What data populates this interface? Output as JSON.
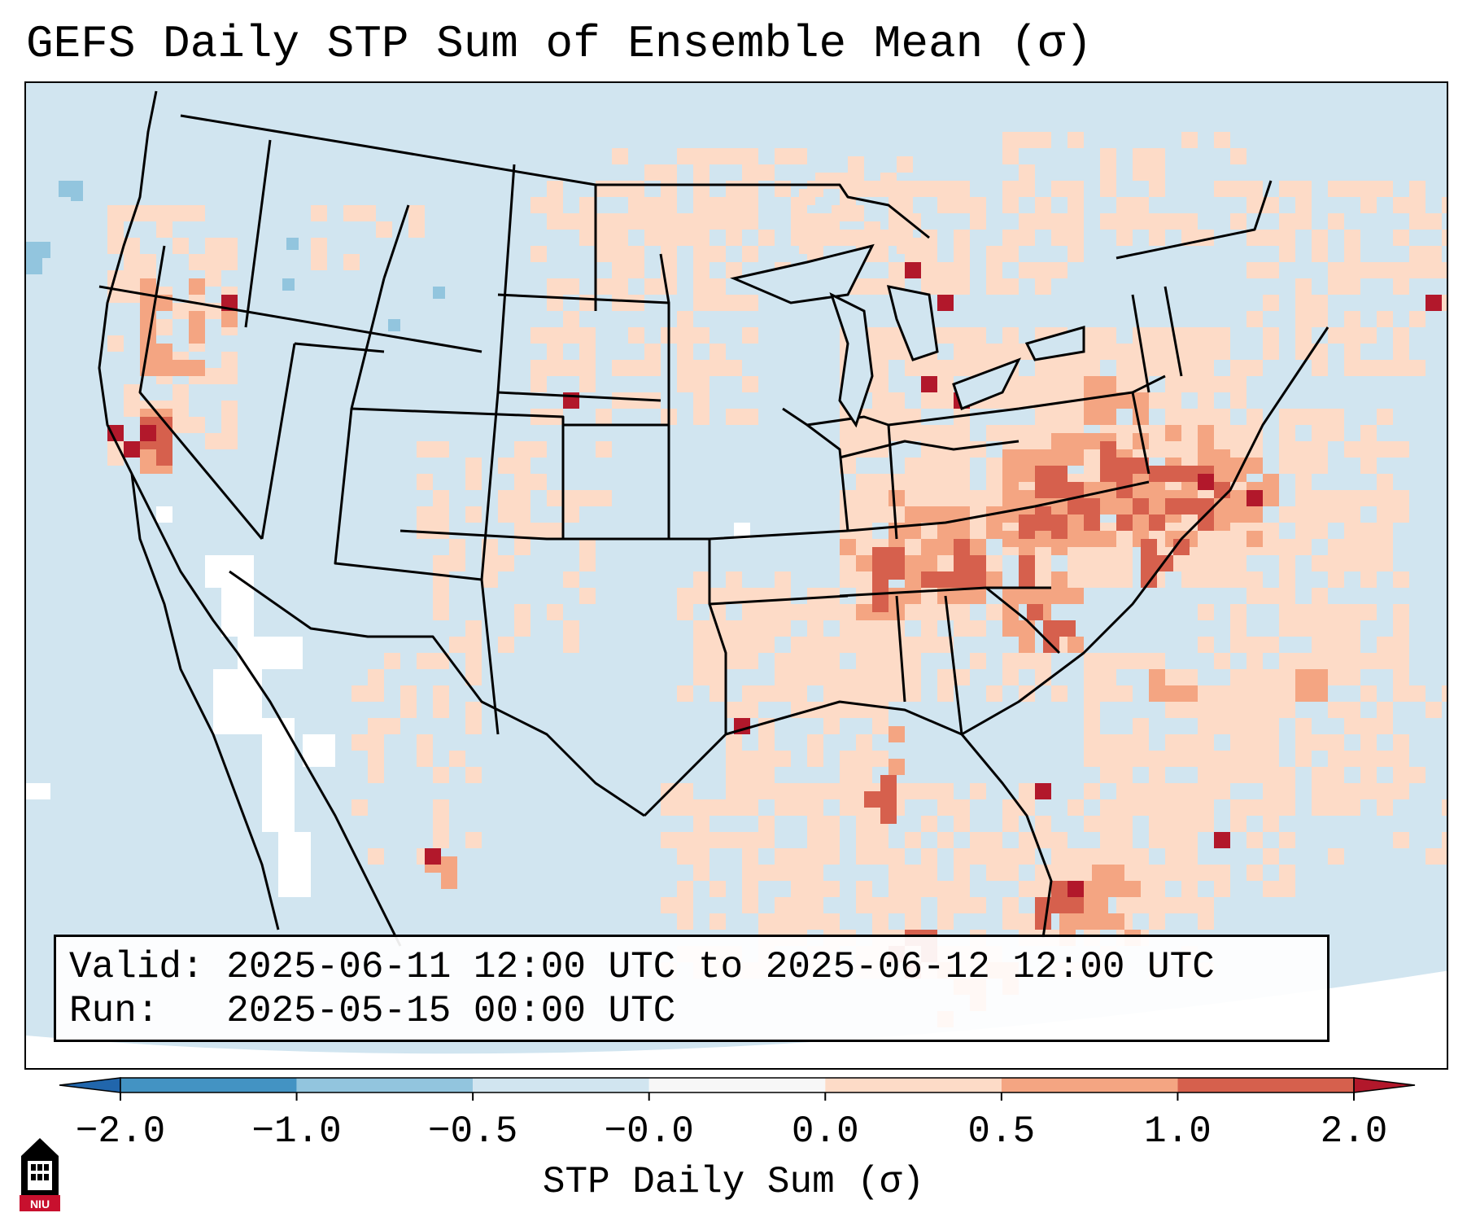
{
  "title": "GEFS Daily STP Sum of Ensemble Mean (σ)",
  "info": {
    "valid_label": "Valid:",
    "valid_value": "2025-06-11 12:00 UTC to 2025-06-12 12:00 UTC",
    "run_label": "Run:",
    "run_value": "2025-05-15 00:00 UTC"
  },
  "colorbar": {
    "label": "STP Daily Sum (σ)",
    "ticks": [
      "−2.0",
      "−1.0",
      "−0.5",
      "−0.0",
      "0.0",
      "0.5",
      "1.0",
      "2.0"
    ],
    "bins": [
      {
        "range": "<-2.0",
        "color": "#2166ac"
      },
      {
        "range": "-2.0 to -1.0",
        "color": "#4393c3"
      },
      {
        "range": "-1.0 to -0.5",
        "color": "#92c5de"
      },
      {
        "range": "-0.5 to -0.0",
        "color": "#d1e5f0"
      },
      {
        "range": "-0.0 to 0.0",
        "color": "#f7f7f7"
      },
      {
        "range": "0.0 to 0.5",
        "color": "#fddbc7"
      },
      {
        "range": "0.5 to 1.0",
        "color": "#f4a582"
      },
      {
        "range": "1.0 to 2.0",
        "color": "#d6604d"
      },
      {
        "range": ">2.0",
        "color": "#b2182b"
      }
    ]
  },
  "colors": {
    "background_field": "#d1e5f0",
    "neutral": "#ffffff",
    "low_positive": "#fddbc7",
    "mid_positive": "#f4a582",
    "high_positive": "#d6604d",
    "max_positive": "#b2182b",
    "low_negative": "#92c5de"
  },
  "logo": {
    "text": "NIU"
  }
}
